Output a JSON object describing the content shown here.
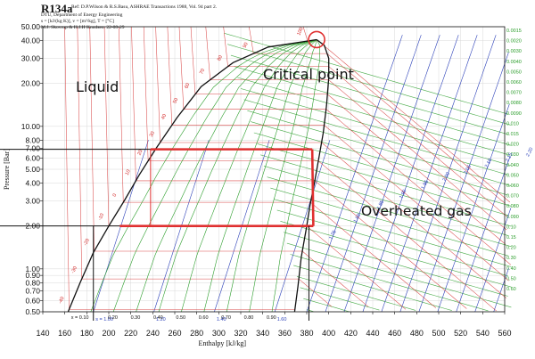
{
  "header": {
    "title": "R134a",
    "reference": "Ref: D.P.Wilson & R.S.Basu, ASHRAE Transactions 1988, Vol. 94 part 2.",
    "lines": [
      "DTU, Department of Energy Engineering",
      "s = [kJ/(kg K)], v = [m³/kg], T = [°C]",
      "M.J. Skovrup & H.J.H Knudsen. 22-08-29"
    ]
  },
  "annotations": {
    "liquid": "Liquid",
    "critical_point": "Critical point",
    "overheated_gas": "Overheated gas"
  },
  "colors": {
    "dome": "#111111",
    "quality": "#2a9d2a",
    "isotherm": "#d42a2a",
    "isentrope": "#2a3fb8",
    "isochore": "#2a9d2a",
    "cycle": "#e03030",
    "critical_marker": "#e03030"
  },
  "chart_data": {
    "type": "line",
    "title": "R134a",
    "xlabel": "Enthalpy [kJ/kg]",
    "ylabel": "Pressure [Bar]",
    "xlim": [
      140,
      560
    ],
    "ylim": [
      0.5,
      50
    ],
    "y_scale": "log",
    "x_ticks": [
      140,
      160,
      180,
      200,
      220,
      240,
      260,
      280,
      300,
      320,
      340,
      360,
      380,
      400,
      420,
      440,
      460,
      480,
      500,
      520,
      540,
      560
    ],
    "y_ticks": [
      0.5,
      0.6,
      0.7,
      0.8,
      0.9,
      1.0,
      2.0,
      3.0,
      4.0,
      5.0,
      6.0,
      7.0,
      8.0,
      10.0,
      20.0,
      30.0,
      40.0,
      50.0
    ],
    "y_tick_labels": [
      "0.50",
      "0.60",
      "0.70",
      "0.80",
      "0.90",
      "1.00",
      "2.00",
      "3.00",
      "4.00",
      "5.00",
      "6.00",
      "7.00",
      "8.00",
      "10.00",
      "20.00",
      "30.00",
      "40.00",
      "50.00"
    ],
    "grid": true,
    "critical_point": {
      "h": 389,
      "p": 40.6
    },
    "series": [
      {
        "name": "saturated liquid",
        "points": [
          [
            163,
            0.5
          ],
          [
            174,
            0.8
          ],
          [
            186,
            1.3
          ],
          [
            200,
            2.0
          ],
          [
            214,
            3.0
          ],
          [
            228,
            4.6
          ],
          [
            243,
            7.0
          ],
          [
            262,
            11.5
          ],
          [
            284,
            19
          ],
          [
            313,
            28
          ],
          [
            345,
            36
          ],
          [
            389,
            40.6
          ]
        ]
      },
      {
        "name": "saturated vapour",
        "points": [
          [
            389,
            40.6
          ],
          [
            396,
            37
          ],
          [
            400,
            30
          ],
          [
            400,
            22
          ],
          [
            398,
            14
          ],
          [
            395,
            9
          ],
          [
            391,
            6
          ],
          [
            387,
            4
          ],
          [
            383,
            2.8
          ],
          [
            380,
            2.0
          ],
          [
            375,
            1.2
          ],
          [
            372,
            0.75
          ],
          [
            369,
            0.5
          ]
        ]
      },
      {
        "name": "cycle",
        "points": [
          [
            238,
            6.9
          ],
          [
            385,
            6.9
          ],
          [
            386,
            2.0
          ],
          [
            362,
            2.0
          ],
          [
            210,
            2.0
          ]
        ]
      }
    ],
    "quality_lines": {
      "values": [
        0.1,
        0.2,
        0.3,
        0.4,
        0.5,
        0.6,
        0.7,
        0.8,
        0.9
      ],
      "labels": [
        "x = 0.10",
        "0.20",
        "0.30",
        "0.40",
        "0.50",
        "0.60",
        "0.70",
        "0.80",
        "0.90"
      ]
    },
    "isotherm_labels": [
      "-40",
      "-30",
      "-20",
      "-10",
      "0",
      "10",
      "20",
      "30",
      "40",
      "50",
      "60",
      "70",
      "80",
      "90",
      "100"
    ],
    "isentrope_labels": [
      "s = 1.00",
      "1.20",
      "1.40",
      "1.60",
      "1.75",
      "1.80",
      "1.85",
      "1.90",
      "1.95",
      "2.00",
      "2.05",
      "2.10",
      "2.15",
      "2.20",
      "2.25"
    ],
    "isochore_labels": [
      "0.0015",
      "0.0020",
      "0.0030",
      "0.0040",
      "0.0050",
      "0.0060",
      "0.0070",
      "0.0080",
      "0.0090",
      "0.010",
      "0.015",
      "0.020",
      "0.030",
      "0.040",
      "0.050",
      "0.060",
      "0.070",
      "0.080",
      "0.090",
      "0.10",
      "0.15",
      "0.20",
      "0.30",
      "0.40",
      "0.50",
      "0.60"
    ]
  }
}
